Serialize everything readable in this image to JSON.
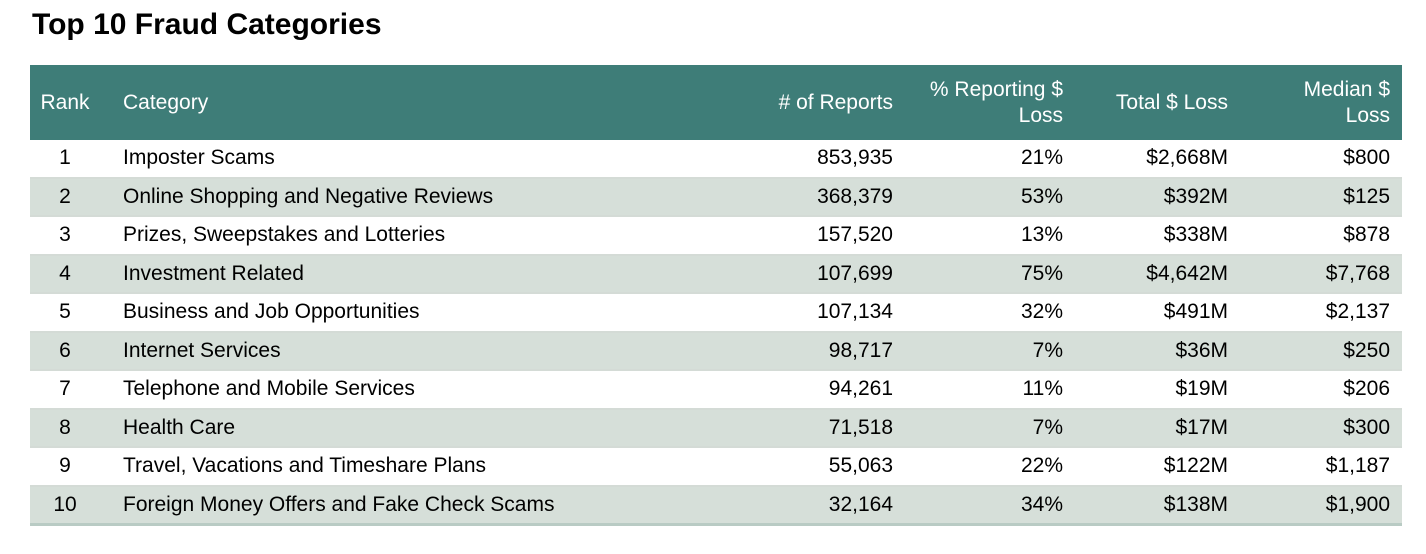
{
  "title": "Top 10 Fraud Categories",
  "colors": {
    "header_bg": "#3e7d78",
    "header_text": "#ffffff",
    "alt_row_bg": "#d6dfd9",
    "row_separator": "#d4dbd6",
    "table_bottom_border": "#b9cbc4",
    "title_text": "#000000"
  },
  "header": {
    "rank": "Rank",
    "category": "Category",
    "reports": "# of Reports",
    "pct_line1": "% Reporting $",
    "pct_line2": "Loss",
    "total": "Total $ Loss",
    "median_line1": "Median $",
    "median_line2": "Loss"
  },
  "chart_data": {
    "type": "table",
    "title": "Top 10 Fraud Categories",
    "columns": [
      "Rank",
      "Category",
      "# of Reports",
      "% Reporting $ Loss",
      "Total $ Loss",
      "Median $ Loss"
    ],
    "rows": [
      [
        "1",
        "Imposter Scams",
        "853,935",
        "21%",
        "$2,668M",
        "$800"
      ],
      [
        "2",
        "Online Shopping and Negative Reviews",
        "368,379",
        "53%",
        "$392M",
        "$125"
      ],
      [
        "3",
        "Prizes, Sweepstakes and Lotteries",
        "157,520",
        "13%",
        "$338M",
        "$878"
      ],
      [
        "4",
        "Investment Related",
        "107,699",
        "75%",
        "$4,642M",
        "$7,768"
      ],
      [
        "5",
        "Business and Job Opportunities",
        "107,134",
        "32%",
        "$491M",
        "$2,137"
      ],
      [
        "6",
        "Internet Services",
        "98,717",
        "7%",
        "$36M",
        "$250"
      ],
      [
        "7",
        "Telephone and Mobile Services",
        "94,261",
        "11%",
        "$19M",
        "$206"
      ],
      [
        "8",
        "Health Care",
        "71,518",
        "7%",
        "$17M",
        "$300"
      ],
      [
        "9",
        "Travel, Vacations and Timeshare Plans",
        "55,063",
        "22%",
        "$122M",
        "$1,187"
      ],
      [
        "10",
        "Foreign Money Offers and Fake Check Scams",
        "32,164",
        "34%",
        "$138M",
        "$1,900"
      ]
    ]
  }
}
